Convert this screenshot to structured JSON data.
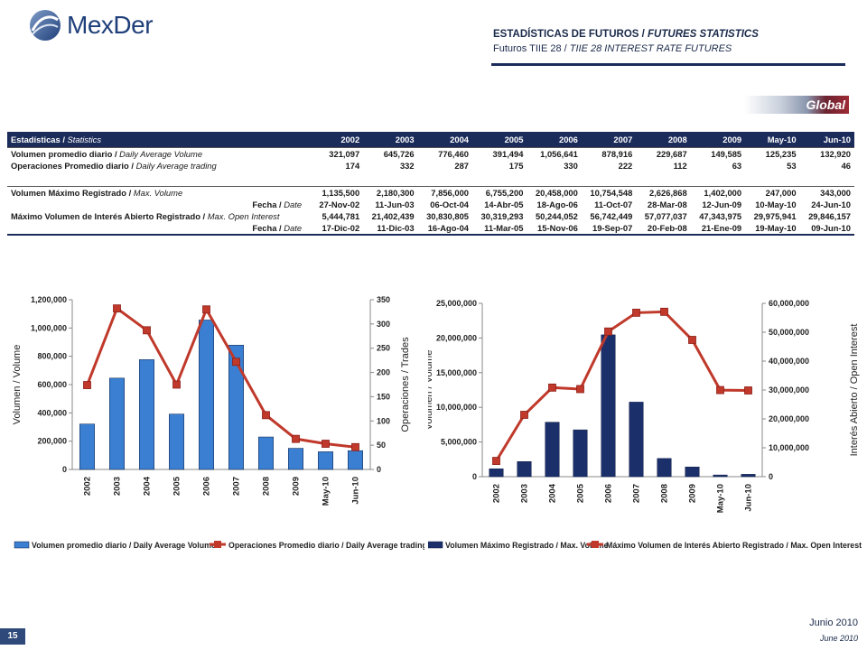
{
  "header": {
    "logo_text": "MexDer",
    "title_es": "ESTADÍSTICAS DE FUTUROS",
    "title_sep": " / ",
    "title_en": "FUTURES STATISTICS",
    "subtitle_es": "Futuros TIIE  28",
    "subtitle_sep": " / ",
    "subtitle_en": "TIIE 28 INTEREST RATE FUTURES",
    "badge": "Global"
  },
  "table": {
    "header_es": "Estadísticas / ",
    "header_en": "Statistics",
    "columns": [
      "2002",
      "2003",
      "2004",
      "2005",
      "2006",
      "2007",
      "2008",
      "2009",
      "May-10",
      "Jun-10"
    ],
    "rows": [
      {
        "es": "Volumen promedio diario / ",
        "en": "Daily Average Volume",
        "values": [
          "321,097",
          "645,726",
          "776,460",
          "391,494",
          "1,056,641",
          "878,916",
          "229,687",
          "149,585",
          "125,235",
          "132,920"
        ]
      },
      {
        "es": "Operaciones Promedio diario / ",
        "en": "Daily Average trading",
        "values": [
          "174",
          "332",
          "287",
          "175",
          "330",
          "222",
          "112",
          "63",
          "53",
          "46"
        ]
      },
      {
        "es": "Volumen Máximo Registrado / ",
        "en": "Max. Volume",
        "values": [
          "1,135,500",
          "2,180,300",
          "7,856,000",
          "6,755,200",
          "20,458,000",
          "10,754,548",
          "2,626,868",
          "1,402,000",
          "247,000",
          "343,000"
        ]
      },
      {
        "es": "Fecha / ",
        "en": "Date",
        "values": [
          "27-Nov-02",
          "11-Jun-03",
          "06-Oct-04",
          "14-Abr-05",
          "18-Ago-06",
          "11-Oct-07",
          "28-Mar-08",
          "12-Jun-09",
          "10-May-10",
          "24-Jun-10"
        ]
      },
      {
        "es": "Máximo Volumen de Interés Abierto Registrado / ",
        "en": "Max. Open Interest",
        "values": [
          "5,444,781",
          "21,402,439",
          "30,830,805",
          "30,319,293",
          "50,244,052",
          "56,742,449",
          "57,077,037",
          "47,343,975",
          "29,975,941",
          "29,846,157"
        ]
      },
      {
        "es": "Fecha / ",
        "en": "Date",
        "values": [
          "17-Dic-02",
          "11-Dic-03",
          "16-Ago-04",
          "11-Mar-05",
          "15-Nov-06",
          "19-Sep-07",
          "20-Feb-08",
          "21-Ene-09",
          "19-May-10",
          "09-Jun-10"
        ]
      }
    ]
  },
  "chart_data": [
    {
      "type": "bar",
      "categories": [
        "2002",
        "2003",
        "2004",
        "2005",
        "2006",
        "2007",
        "2008",
        "2009",
        "May-10",
        "Jun-10"
      ],
      "ylabel": "Volumen / Volume",
      "y2label": "Operaciones / Trades",
      "ylim": [
        0,
        1200000
      ],
      "y2lim": [
        0,
        350
      ],
      "yticks": [
        "0",
        "200,000",
        "400,000",
        "600,000",
        "800,000",
        "1,000,000",
        "1,200,000"
      ],
      "y2ticks": [
        "0",
        "50",
        "100",
        "150",
        "200",
        "250",
        "300",
        "350"
      ],
      "bar_color": "#3a7fd1",
      "line_color": "#c0392b",
      "series": [
        {
          "name": "Volumen promedio diario / Daily Average Volume",
          "kind": "bar",
          "axis": "left",
          "values": [
            321097,
            645726,
            776460,
            391494,
            1056641,
            878916,
            229687,
            149585,
            125235,
            132920
          ]
        },
        {
          "name": "Operaciones Promedio diario / Daily Average trading",
          "kind": "line",
          "axis": "right",
          "values": [
            174,
            332,
            287,
            175,
            330,
            222,
            112,
            63,
            53,
            46
          ]
        }
      ]
    },
    {
      "type": "bar",
      "categories": [
        "2002",
        "2003",
        "2004",
        "2005",
        "2006",
        "2007",
        "2008",
        "2009",
        "May-10",
        "Jun-10"
      ],
      "ylabel": "Volumen / Volume",
      "y2label": "Interés Abierto / Open Interest",
      "ylim": [
        0,
        25000000
      ],
      "y2lim": [
        0,
        60000000
      ],
      "yticks": [
        "0",
        "5,000,000",
        "10,000,000",
        "15,000,000",
        "20,000,000",
        "25,000,000"
      ],
      "y2ticks": [
        "0",
        "10,000,000",
        "20,000,000",
        "30,000,000",
        "40,000,000",
        "50,000,000",
        "60,000,000"
      ],
      "bar_color": "#1b2f6b",
      "line_color": "#c0392b",
      "series": [
        {
          "name": "Volumen Máximo Registrado / Max. Volume",
          "kind": "bar",
          "axis": "left",
          "values": [
            1135500,
            2180300,
            7856000,
            6755200,
            20458000,
            10754548,
            2626868,
            1402000,
            247000,
            343000
          ]
        },
        {
          "name": "Máximo Volumen de Interés  Abierto Registrado / Max. Open Interest",
          "kind": "line",
          "axis": "right",
          "values": [
            5444781,
            21402439,
            30830805,
            30319293,
            50244052,
            56742449,
            57077037,
            47343975,
            29975941,
            29846157
          ]
        }
      ]
    }
  ],
  "footer": {
    "page_number": "15",
    "date_es": "Junio 2010",
    "date_en": "June 2010"
  }
}
